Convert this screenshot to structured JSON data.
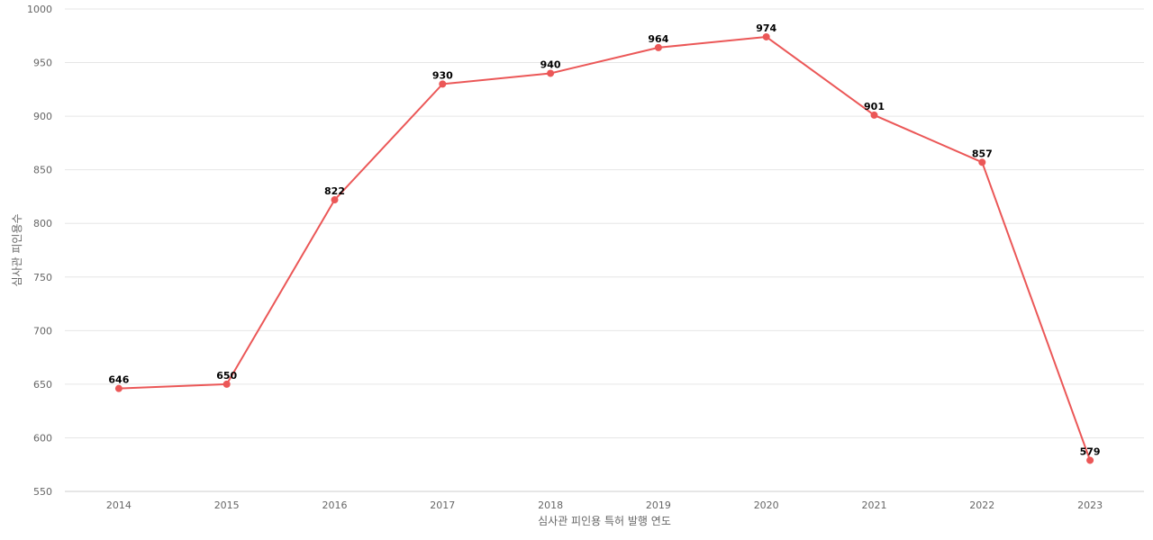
{
  "chart_data": {
    "type": "line",
    "title": "",
    "xlabel": "심사관 피인용 특허 발행 연도",
    "ylabel": "심사관 피인용수",
    "ylim": [
      550,
      1000
    ],
    "yticks": [
      550,
      600,
      650,
      700,
      750,
      800,
      850,
      900,
      950,
      1000
    ],
    "grid": true,
    "legend": "none",
    "categories": [
      "2014",
      "2015",
      "2016",
      "2017",
      "2018",
      "2019",
      "2020",
      "2021",
      "2022",
      "2023"
    ],
    "series": [
      {
        "values": [
          646,
          650,
          822,
          930,
          940,
          964,
          974,
          901,
          857,
          579
        ],
        "color": "#eb5757"
      }
    ]
  }
}
